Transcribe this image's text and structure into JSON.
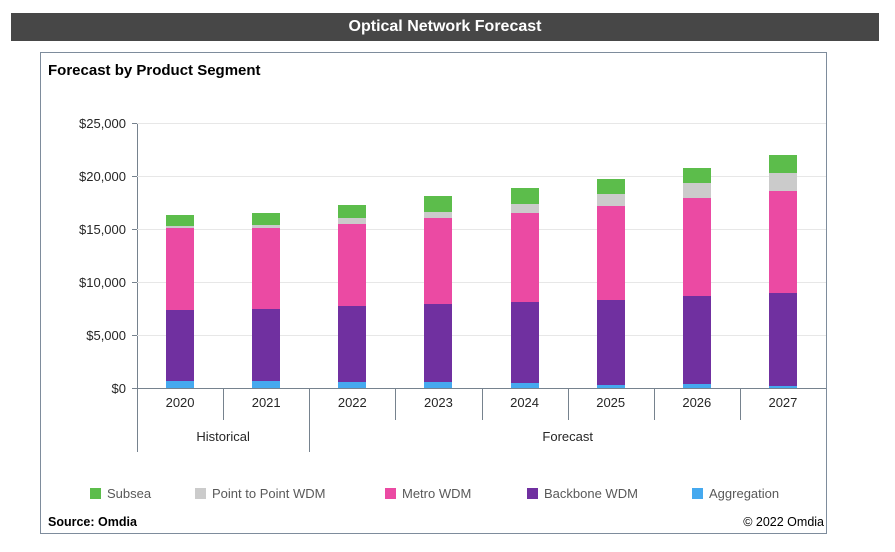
{
  "window": {
    "title": "Optical Network Forecast"
  },
  "panel": {
    "title": "Forecast by Product Segment",
    "source": "Source: Omdia",
    "copyright": "© 2022 Omdia"
  },
  "chart_data": {
    "type": "bar",
    "stacked": true,
    "title": "Forecast by Product Segment",
    "categories": [
      "2020",
      "2021",
      "2022",
      "2023",
      "2024",
      "2025",
      "2026",
      "2027"
    ],
    "category_groups": [
      {
        "label": "Historical",
        "columns": 2
      },
      {
        "label": "Forecast",
        "columns": 6
      }
    ],
    "series": [
      {
        "name": "Aggregation",
        "color": "#45a9ef",
        "values": [
          700,
          700,
          600,
          550,
          450,
          300,
          400,
          200
        ]
      },
      {
        "name": "Backbone WDM",
        "color": "#7030a0",
        "values": [
          6700,
          6800,
          7100,
          7350,
          7650,
          8000,
          8250,
          8800
        ]
      },
      {
        "name": "Metro WDM",
        "color": "#eb4aa3",
        "values": [
          7700,
          7600,
          7800,
          8150,
          8450,
          8850,
          9300,
          9600
        ]
      },
      {
        "name": "Point to Point WDM",
        "color": "#cbcbcb",
        "values": [
          200,
          300,
          500,
          600,
          850,
          1150,
          1400,
          1700
        ]
      },
      {
        "name": "Subsea",
        "color": "#5cbd4b",
        "values": [
          1000,
          1100,
          1300,
          1450,
          1500,
          1450,
          1450,
          1700
        ]
      }
    ],
    "totals": [
      16300,
      16500,
      17300,
      18100,
      18900,
      19750,
      20800,
      22000
    ],
    "y_axis": {
      "min": 0,
      "max": 25000,
      "step": 5000,
      "ticks": [
        "$0",
        "$5,000",
        "$10,000",
        "$15,000",
        "$20,000",
        "$25,000"
      ]
    },
    "legend": [
      "Subsea",
      "Point to Point WDM",
      "Metro WDM",
      "Backbone WDM",
      "Aggregation"
    ],
    "legend_position": "bottom",
    "grid": true,
    "colors": {
      "titlebar_bg": "#474747",
      "titlebar_text": "#ffffff",
      "axis_line": "#76828e",
      "gridline": "#e7e7e7",
      "legend_text": "#595959",
      "panel_border": "#7e8c9c"
    }
  }
}
